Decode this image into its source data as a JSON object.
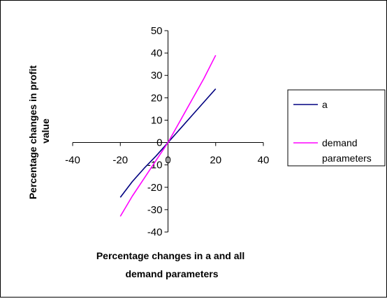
{
  "chart_data": {
    "type": "line",
    "title": "",
    "xlabel": [
      "Percentage changes in a and all",
      "demand parameters"
    ],
    "ylabel": [
      "Percentage changes in profit",
      "value"
    ],
    "xlim": [
      -40,
      40
    ],
    "ylim": [
      -40,
      50
    ],
    "xticks": [
      -40,
      -20,
      0,
      20,
      40
    ],
    "yticks": [
      -40,
      -30,
      -20,
      -10,
      0,
      10,
      20,
      30,
      40,
      50
    ],
    "grid": false,
    "legend_position": "right",
    "series": [
      {
        "name": "a",
        "color": "#000080",
        "x": [
          -20,
          -15,
          -10,
          -5,
          0,
          5,
          10,
          15,
          20
        ],
        "y": [
          -24.5,
          -17.5,
          -11.5,
          -6,
          0,
          6,
          12,
          18,
          24
        ]
      },
      {
        "name": "demand parameters",
        "legend_lines": [
          "demand",
          "parameters"
        ],
        "color": "#ff00ff",
        "x": [
          -20,
          -15,
          -10,
          -5,
          0,
          5,
          10,
          15,
          20
        ],
        "y": [
          -33,
          -24,
          -16,
          -8,
          0,
          9.5,
          19,
          28.5,
          39
        ]
      }
    ]
  }
}
